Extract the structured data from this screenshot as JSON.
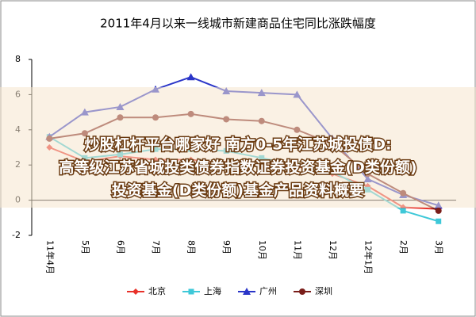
{
  "chart_data": {
    "type": "line",
    "title": "2011年4月以来一线城市新建商品住宅同比涨跌幅度",
    "categories": [
      "11年4月",
      "5月",
      "6月",
      "7月",
      "8月",
      "9月",
      "10月",
      "11月",
      "12月",
      "12年1月",
      "2月",
      "3月"
    ],
    "series": [
      {
        "name": "北京",
        "color": "#e8312a",
        "marker": "diamond",
        "values": [
          3.0,
          2.2,
          2.5,
          2.3,
          2.3,
          2.1,
          2.0,
          1.9,
          1.5,
          0.8,
          -0.4,
          -0.5
        ]
      },
      {
        "name": "上海",
        "color": "#3ec8d8",
        "marker": "square",
        "values": [
          3.6,
          2.4,
          2.6,
          2.9,
          2.9,
          2.8,
          2.4,
          2.0,
          1.6,
          0.6,
          -0.6,
          -1.2
        ]
      },
      {
        "name": "广州",
        "color": "#2a35c8",
        "marker": "triangle",
        "values": [
          3.6,
          5.0,
          5.3,
          6.3,
          7.0,
          6.2,
          6.1,
          6.0,
          3.5,
          1.2,
          0.3,
          -0.3
        ]
      },
      {
        "name": "深圳",
        "color": "#7a1e1a",
        "marker": "circle",
        "values": [
          3.5,
          3.8,
          4.7,
          4.7,
          4.9,
          4.6,
          4.5,
          4.0,
          3.2,
          1.5,
          0.4,
          -0.6
        ]
      }
    ],
    "ylim": [
      -2,
      8
    ],
    "yticks": [
      -2,
      0,
      2,
      4,
      6,
      8
    ],
    "grid": false,
    "annotations": [
      "炒股杠杆平台哪家好 南方0-5年江苏城投债D:",
      "高等级江苏省城投类债券指数证券投资基金(D类份额)",
      "投资基金(D类份额)基金产品资料概要"
    ]
  }
}
